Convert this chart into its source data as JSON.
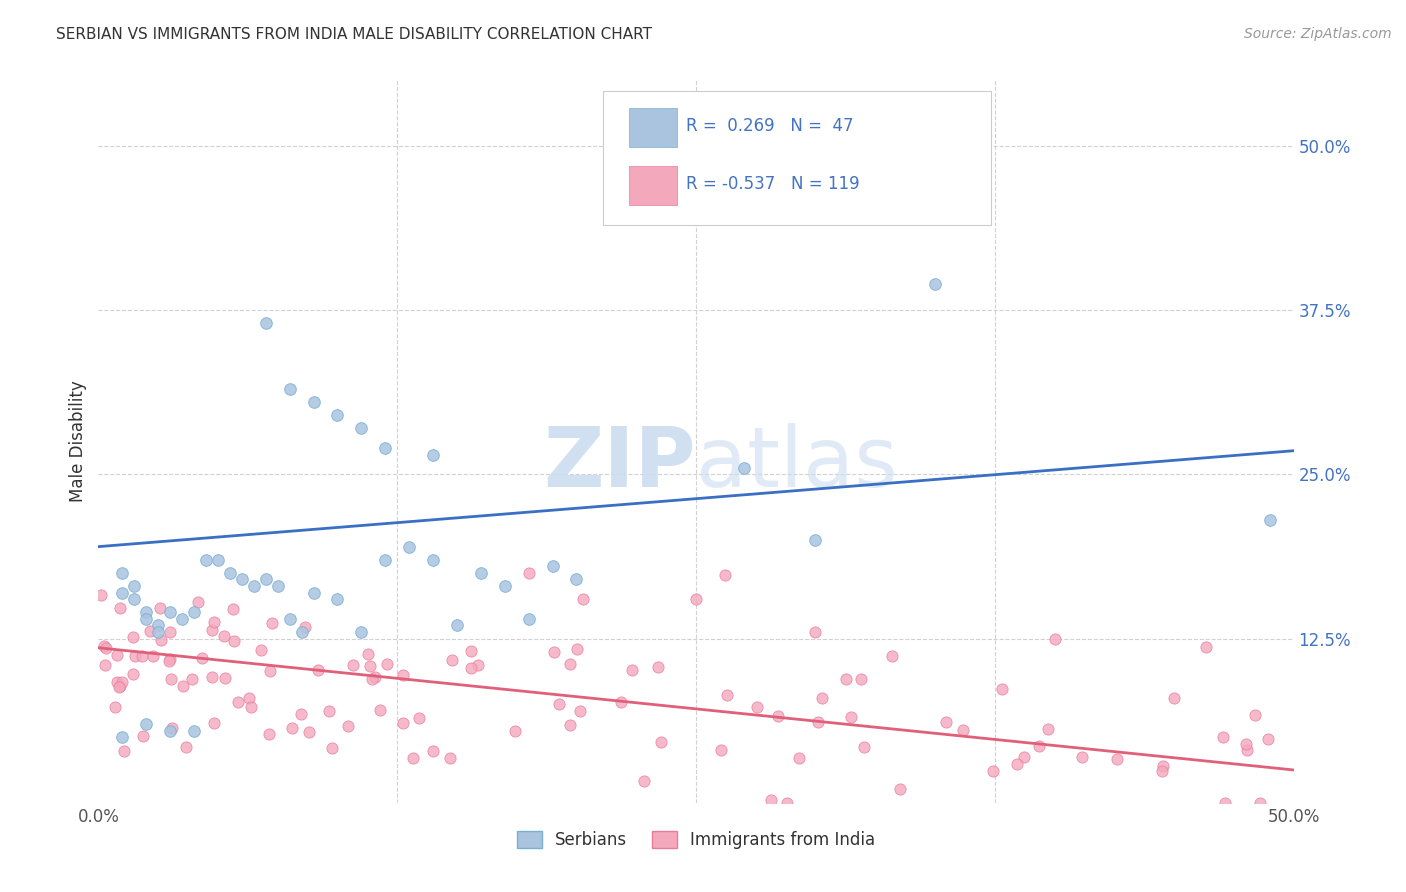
{
  "title": "SERBIAN VS IMMIGRANTS FROM INDIA MALE DISABILITY CORRELATION CHART",
  "source": "Source: ZipAtlas.com",
  "ylabel": "Male Disability",
  "ytick_vals": [
    0.125,
    0.25,
    0.375,
    0.5
  ],
  "ytick_labels": [
    "12.5%",
    "25.0%",
    "37.5%",
    "50.0%"
  ],
  "xtick_vals": [
    0.0,
    0.5
  ],
  "xtick_labels": [
    "0.0%",
    "50.0%"
  ],
  "xlim": [
    0.0,
    0.5
  ],
  "ylim": [
    0.0,
    0.55
  ],
  "serbian_R": 0.269,
  "serbian_N": 47,
  "india_R": -0.537,
  "india_N": 119,
  "serbian_color": "#aac4e0",
  "serbia_edge_color": "#7aafd4",
  "india_color": "#f4a8bc",
  "india_edge_color": "#e87aa0",
  "line_serbian_color": "#3a6fc4",
  "line_india_color": "#e0607a",
  "background_color": "#ffffff",
  "grid_color": "#cccccc",
  "watermark_color": "#ccddf0",
  "title_color": "#333333",
  "ytick_color": "#4472c4",
  "xtick_color": "#555555",
  "legend_label_color": "#333333",
  "serbia_line_start_y": 0.195,
  "serbia_line_end_y": 0.268,
  "india_line_start_y": 0.118,
  "india_line_end_y": 0.025
}
